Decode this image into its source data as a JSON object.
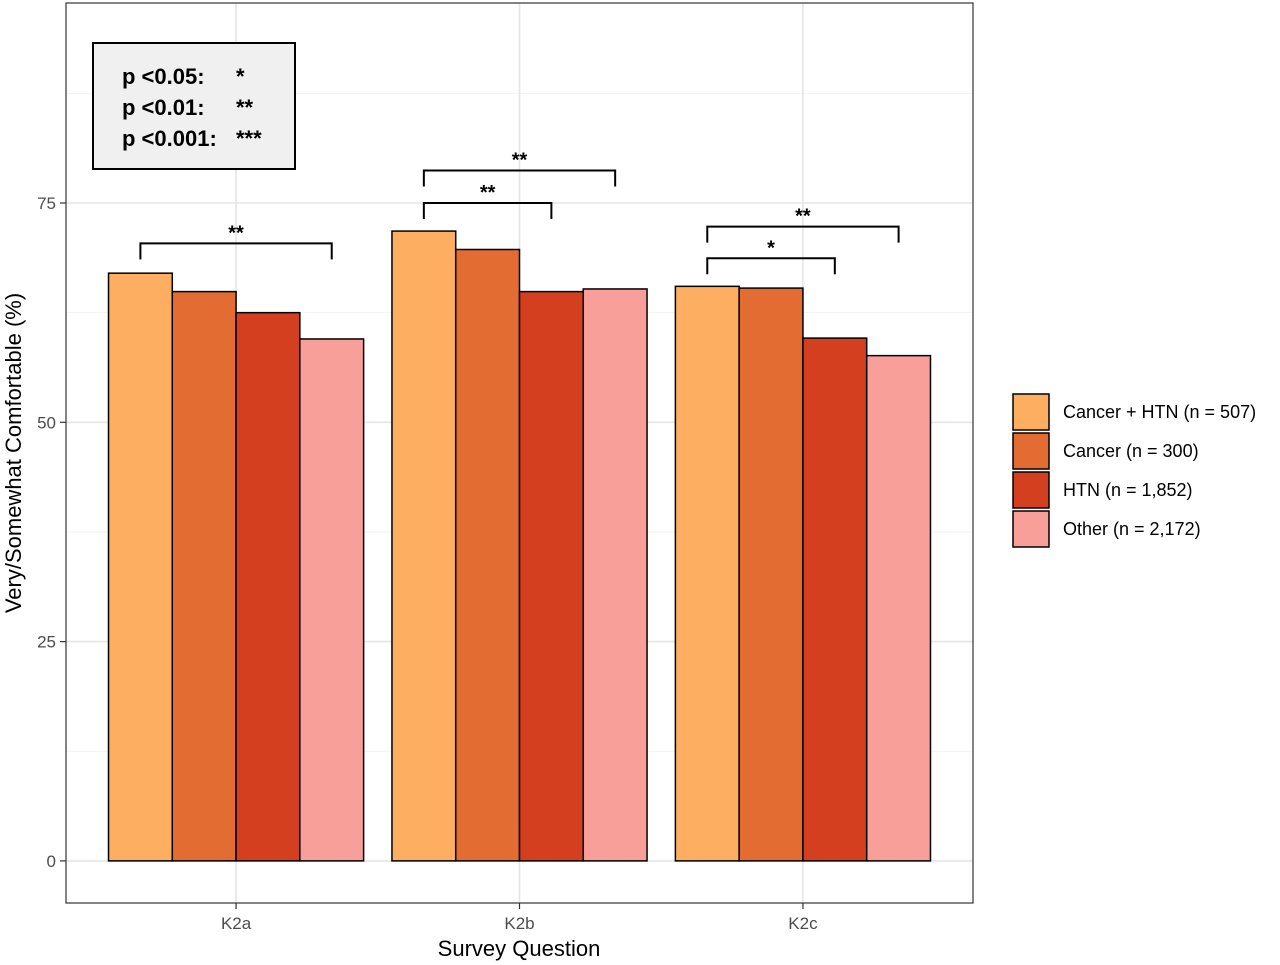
{
  "chart_data": {
    "type": "bar",
    "categories": [
      "K2a",
      "K2b",
      "K2c"
    ],
    "series": [
      {
        "name": "Cancer + HTN (n = 507)",
        "color": "#fdae61",
        "values": [
          67.0,
          71.8,
          65.5
        ]
      },
      {
        "name": "Cancer (n = 300)",
        "color": "#e36c33",
        "values": [
          64.9,
          69.7,
          65.3
        ]
      },
      {
        "name": "HTN (n = 1,852)",
        "color": "#d33f1f",
        "values": [
          62.5,
          64.9,
          59.6
        ]
      },
      {
        "name": "Other (n = 2,172)",
        "color": "#f89f9a",
        "values": [
          59.5,
          65.2,
          57.6
        ]
      }
    ],
    "xlabel": "Survey Question",
    "ylabel": "Very/Somewhat Comfortable (%)",
    "ylim": [
      -4.8,
      97.8
    ],
    "yticks": [
      0,
      25,
      50,
      75
    ],
    "grid": true,
    "legend_position": "right",
    "significance_brackets": [
      {
        "category": "K2a",
        "from_series": 0,
        "to_series": 3,
        "label": "**",
        "y": 70.4
      },
      {
        "category": "K2b",
        "from_series": 0,
        "to_series": 2,
        "label": "**",
        "y": 75.0
      },
      {
        "category": "K2b",
        "from_series": 0,
        "to_series": 3,
        "label": "**",
        "y": 78.7
      },
      {
        "category": "K2c",
        "from_series": 0,
        "to_series": 2,
        "label": "*",
        "y": 68.7
      },
      {
        "category": "K2c",
        "from_series": 0,
        "to_series": 3,
        "label": "**",
        "y": 72.3
      }
    ],
    "significance_key": [
      {
        "text": "p <0.05:",
        "stars": "*"
      },
      {
        "text": "p <0.01:",
        "stars": "**"
      },
      {
        "text": "p <0.001:",
        "stars": "***"
      }
    ]
  }
}
